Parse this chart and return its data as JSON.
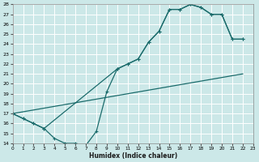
{
  "xlabel": "Humidex (Indice chaleur)",
  "bg_color": "#cce8e8",
  "grid_color": "#aacccc",
  "line_color": "#1a6b6b",
  "curve_upper": {
    "x": [
      0,
      1,
      2,
      3,
      10,
      11,
      12,
      13,
      14,
      15,
      16,
      17,
      18,
      19,
      20,
      21,
      22
    ],
    "y": [
      17,
      16.5,
      16.0,
      15.5,
      21.5,
      22.0,
      22.5,
      24.2,
      25.3,
      27.5,
      27.5,
      28.0,
      27.7,
      27.0,
      27.0,
      24.5,
      24.5
    ]
  },
  "curve_dip": {
    "x": [
      0,
      1,
      2,
      3,
      4,
      5,
      6,
      7,
      8,
      9,
      10,
      11,
      12,
      13,
      14,
      15,
      16,
      17,
      18,
      19,
      20,
      21,
      22
    ],
    "y": [
      17,
      16.5,
      16.0,
      15.5,
      14.5,
      14.0,
      14.0,
      13.8,
      15.2,
      19.2,
      21.5,
      22.0,
      22.5,
      24.2,
      25.3,
      27.5,
      27.5,
      28.0,
      27.7,
      27.0,
      27.0,
      24.5,
      24.5
    ]
  },
  "curve_straight": {
    "x": [
      0,
      22
    ],
    "y": [
      17.0,
      21.0
    ]
  },
  "ylim": [
    14,
    28
  ],
  "xlim": [
    0,
    23
  ],
  "yticks": [
    14,
    15,
    16,
    17,
    18,
    19,
    20,
    21,
    22,
    23,
    24,
    25,
    26,
    27,
    28
  ],
  "xticks": [
    0,
    1,
    2,
    3,
    4,
    5,
    6,
    7,
    8,
    9,
    10,
    11,
    12,
    13,
    14,
    15,
    16,
    17,
    18,
    19,
    20,
    21,
    22,
    23
  ]
}
